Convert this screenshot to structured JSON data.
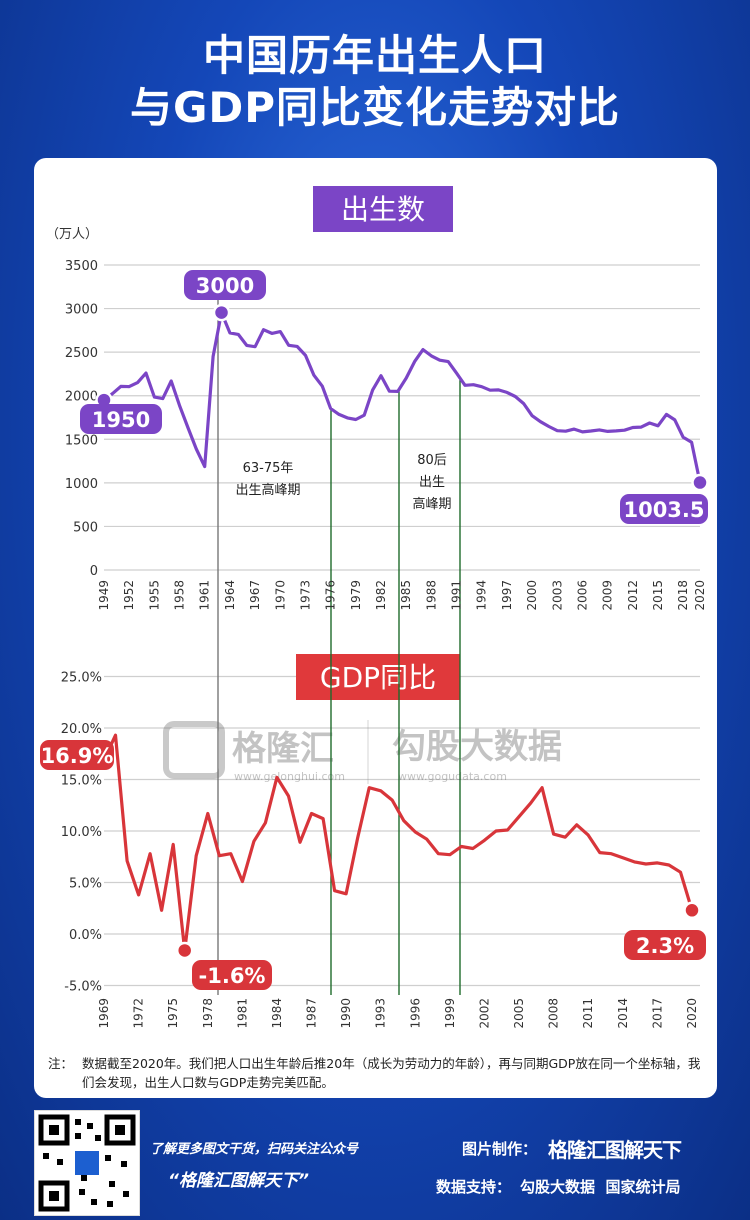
{
  "title": {
    "line1": "中国历年出生人口",
    "line2": "与GDP同比变化走势对比"
  },
  "births_panel": {
    "label": "出生数",
    "unit": "（万人）"
  },
  "gdp_panel": {
    "label": "GDP同比"
  },
  "annotations": {
    "peak1": [
      "63-75年",
      "出生高峰期"
    ],
    "peak2": [
      "80后",
      "出生",
      "高峰期"
    ]
  },
  "watermark": {
    "brand1": "格隆汇",
    "brand1_url": "www.gelonghui.com",
    "brand2": "勾股大数据",
    "brand2_url": "www.gogudata.com"
  },
  "note": {
    "label": "注：",
    "text": "数据截至2020年。我们把人口出生年龄后推20年（成长为劳动力的年龄），再与同期GDP放在同一个坐标轴，我们会发现，出生人口数与GDP走势完美匹配。"
  },
  "footer": {
    "promo_line": "了解更多图文干货，扫码关注公众号",
    "promo_name": "“格隆汇图解天下”",
    "made_by_label": "图片制作：",
    "made_by": "格隆汇图解天下",
    "data_label": "数据支持：",
    "data_sources": "勾股大数据  国家统计局"
  },
  "colors": {
    "births": "#7b45c6",
    "gdp": "#d8353a",
    "bg": "#1a4fc0"
  },
  "chart_data": [
    {
      "type": "line",
      "title": "出生数",
      "ylabel": "（万人）",
      "ylim": [
        0,
        3500
      ],
      "yticks": [
        "0",
        "500",
        "1000",
        "1500",
        "2000",
        "2500",
        "3000",
        "3500"
      ],
      "xticks": [
        "1949",
        "1952",
        "1955",
        "1958",
        "1961",
        "1964",
        "1967",
        "1970",
        "1973",
        "1976",
        "1979",
        "1982",
        "1985",
        "1988",
        "1991",
        "1994",
        "1997",
        "2000",
        "2003",
        "2006",
        "2009",
        "2012",
        "2015",
        "2018",
        "2020"
      ],
      "grid": true,
      "series": [
        {
          "x": [
            1949,
            1950,
            1951,
            1952,
            1953,
            1954,
            1955,
            1956,
            1957,
            1958,
            1959,
            1960,
            1961,
            1962,
            1963,
            1964,
            1965,
            1966,
            1967,
            1968,
            1969,
            1970,
            1971,
            1972,
            1973,
            1974,
            1975,
            1976,
            1977,
            1978,
            1979,
            1980,
            1981,
            1982,
            1983,
            1984,
            1985,
            1986,
            1987,
            1988,
            1989,
            1990,
            1991,
            1992,
            1993,
            1994,
            1995,
            1996,
            1997,
            1998,
            1999,
            2000,
            2001,
            2002,
            2003,
            2004,
            2005,
            2006,
            2007,
            2008,
            2009,
            2010,
            2011,
            2012,
            2013,
            2014,
            2015,
            2016,
            2017,
            2018,
            2019,
            2020
          ],
          "y": [
            1950,
            2023,
            2107,
            2105,
            2151,
            2260,
            1984,
            1967,
            2169,
            1889,
            1635,
            1389,
            1187,
            2451,
            2954,
            2721,
            2704,
            2577,
            2563,
            2757,
            2715,
            2736,
            2578,
            2566,
            2463,
            2235,
            2109,
            1853,
            1786,
            1745,
            1727,
            1776,
            2064,
            2230,
            2052,
            2050,
            2202,
            2391,
            2529,
            2457,
            2407,
            2391,
            2258,
            2119,
            2126,
            2104,
            2063,
            2067,
            2038,
            1991,
            1909,
            1771,
            1702,
            1647,
            1599,
            1593,
            1617,
            1585,
            1595,
            1608,
            1591,
            1596,
            1604,
            1635,
            1640,
            1687,
            1655,
            1786,
            1723,
            1523,
            1465,
            1003.5
          ]
        }
      ],
      "labels": [
        "1950",
        "3000",
        "1003.5"
      ]
    },
    {
      "type": "line",
      "title": "GDP同比",
      "ylim": [
        -5,
        25
      ],
      "yticks": [
        "-5.0%",
        "0.0%",
        "5.0%",
        "10.0%",
        "15.0%",
        "20.0%",
        "25.0%"
      ],
      "xticks": [
        "1969",
        "1972",
        "1975",
        "1978",
        "1981",
        "1984",
        "1987",
        "1990",
        "1993",
        "1996",
        "1999",
        "2002",
        "2005",
        "2008",
        "2011",
        "2014",
        "2017",
        "2020"
      ],
      "grid": true,
      "series": [
        {
          "x": [
            1969,
            1970,
            1971,
            1972,
            1973,
            1974,
            1975,
            1976,
            1977,
            1978,
            1979,
            1980,
            1981,
            1982,
            1983,
            1984,
            1985,
            1986,
            1987,
            1988,
            1989,
            1990,
            1991,
            1992,
            1993,
            1994,
            1995,
            1996,
            1997,
            1998,
            1999,
            2000,
            2001,
            2002,
            2003,
            2004,
            2005,
            2006,
            2007,
            2008,
            2009,
            2010,
            2011,
            2012,
            2013,
            2014,
            2015,
            2016,
            2017,
            2018,
            2019,
            2020
          ],
          "y": [
            16.9,
            19.3,
            7.1,
            3.8,
            7.8,
            2.3,
            8.7,
            -1.6,
            7.6,
            11.7,
            7.6,
            7.8,
            5.1,
            9.0,
            10.8,
            15.2,
            13.4,
            8.9,
            11.7,
            11.2,
            4.2,
            3.9,
            9.3,
            14.2,
            13.9,
            13.0,
            11.0,
            9.9,
            9.2,
            7.8,
            7.7,
            8.5,
            8.3,
            9.1,
            10.0,
            10.1,
            11.4,
            12.7,
            14.2,
            9.7,
            9.4,
            10.6,
            9.6,
            7.9,
            7.8,
            7.4,
            7.0,
            6.8,
            6.9,
            6.7,
            6.0,
            2.3
          ]
        }
      ],
      "labels": [
        "16.9%",
        "-1.6%",
        "2.3%"
      ]
    }
  ]
}
